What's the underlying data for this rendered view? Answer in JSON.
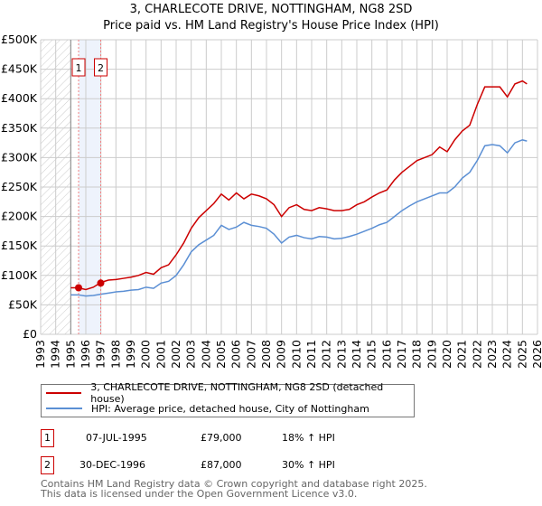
{
  "chart_data": {
    "type": "line",
    "title": "3, CHARLECOTE DRIVE, NOTTINGHAM, NG8 2SD",
    "subtitle": "Price paid vs. HM Land Registry's House Price Index (HPI)",
    "xlim": [
      1993,
      2026
    ],
    "ylim": [
      0,
      500000
    ],
    "x_ticks": [
      "1993",
      "1994",
      "1995",
      "1996",
      "1997",
      "1998",
      "1999",
      "2000",
      "2001",
      "2002",
      "2003",
      "2004",
      "2005",
      "2006",
      "2007",
      "2008",
      "2009",
      "2010",
      "2011",
      "2012",
      "2013",
      "2014",
      "2015",
      "2016",
      "2017",
      "2018",
      "2019",
      "2020",
      "2021",
      "2022",
      "2023",
      "2024",
      "2025",
      "2026"
    ],
    "y_ticks": [
      {
        "v": 0,
        "label": "£0"
      },
      {
        "v": 50000,
        "label": "£50K"
      },
      {
        "v": 100000,
        "label": "£100K"
      },
      {
        "v": 150000,
        "label": "£150K"
      },
      {
        "v": 200000,
        "label": "£200K"
      },
      {
        "v": 250000,
        "label": "£250K"
      },
      {
        "v": 300000,
        "label": "£300K"
      },
      {
        "v": 350000,
        "label": "£350K"
      },
      {
        "v": 400000,
        "label": "£400K"
      },
      {
        "v": 450000,
        "label": "£450K"
      },
      {
        "v": 500000,
        "label": "£500K"
      }
    ],
    "grid": true,
    "hatched_before": 1995,
    "shaded_range": [
      1995.52,
      1997.0
    ],
    "series": [
      {
        "name": "3, CHARLECOTE DRIVE, NOTTINGHAM, NG8 2SD (detached house)",
        "color": "#cc0000",
        "x": [
          1995,
          1995.5,
          1996,
          1996.5,
          1997,
          1997.5,
          1998,
          1998.5,
          1999,
          1999.5,
          2000,
          2000.5,
          2001,
          2001.5,
          2002,
          2002.5,
          2003,
          2003.5,
          2004,
          2004.5,
          2005,
          2005.5,
          2006,
          2006.5,
          2007,
          2007.5,
          2008,
          2008.5,
          2009,
          2009.5,
          2010,
          2010.5,
          2011,
          2011.5,
          2012,
          2012.5,
          2013,
          2013.5,
          2014,
          2014.5,
          2015,
          2015.5,
          2016,
          2016.5,
          2017,
          2017.5,
          2018,
          2018.5,
          2019,
          2019.5,
          2020,
          2020.5,
          2021,
          2021.5,
          2022,
          2022.5,
          2023,
          2023.5,
          2024,
          2024.5,
          2025,
          2025.3
        ],
        "y": [
          79000,
          79000,
          76000,
          80000,
          88000,
          92000,
          93000,
          95000,
          97000,
          100000,
          105000,
          102000,
          113000,
          118000,
          135000,
          155000,
          180000,
          198000,
          210000,
          222000,
          238000,
          228000,
          240000,
          230000,
          238000,
          235000,
          230000,
          220000,
          200000,
          215000,
          220000,
          212000,
          210000,
          215000,
          213000,
          210000,
          210000,
          212000,
          220000,
          225000,
          233000,
          240000,
          245000,
          262000,
          275000,
          285000,
          295000,
          300000,
          305000,
          318000,
          310000,
          330000,
          345000,
          355000,
          390000,
          420000,
          420000,
          420000,
          403000,
          425000,
          430000,
          425000
        ]
      },
      {
        "name": "HPI: Average price, detached house, City of Nottingham",
        "color": "#5b8fd4",
        "x": [
          1995,
          1995.5,
          1996,
          1996.5,
          1997,
          1997.5,
          1998,
          1998.5,
          1999,
          1999.5,
          2000,
          2000.5,
          2001,
          2001.5,
          2002,
          2002.5,
          2003,
          2003.5,
          2004,
          2004.5,
          2005,
          2005.5,
          2006,
          2006.5,
          2007,
          2007.5,
          2008,
          2008.5,
          2009,
          2009.5,
          2010,
          2010.5,
          2011,
          2011.5,
          2012,
          2012.5,
          2013,
          2013.5,
          2014,
          2014.5,
          2015,
          2015.5,
          2016,
          2016.5,
          2017,
          2017.5,
          2018,
          2018.5,
          2019,
          2019.5,
          2020,
          2020.5,
          2021,
          2021.5,
          2022,
          2022.5,
          2023,
          2023.5,
          2024,
          2024.5,
          2025,
          2025.3
        ],
        "y": [
          67000,
          67000,
          65000,
          66000,
          68000,
          70000,
          72000,
          73000,
          75000,
          76000,
          80000,
          78000,
          87000,
          90000,
          100000,
          118000,
          140000,
          152000,
          160000,
          168000,
          185000,
          178000,
          182000,
          190000,
          185000,
          183000,
          180000,
          170000,
          155000,
          165000,
          168000,
          164000,
          162000,
          166000,
          165000,
          162000,
          163000,
          166000,
          170000,
          175000,
          180000,
          186000,
          190000,
          200000,
          210000,
          218000,
          225000,
          230000,
          235000,
          240000,
          240000,
          250000,
          265000,
          275000,
          295000,
          320000,
          322000,
          320000,
          308000,
          325000,
          330000,
          328000
        ]
      }
    ],
    "sales": [
      {
        "id": "1",
        "x": 1995.52,
        "y": 79000
      },
      {
        "id": "2",
        "x": 1996.99,
        "y": 87000
      }
    ]
  },
  "legend": {
    "property": "3, CHARLECOTE DRIVE, NOTTINGHAM, NG8 2SD (detached house)",
    "hpi": "HPI: Average price, detached house, City of Nottingham"
  },
  "transactions": [
    {
      "id": "1",
      "date": "07-JUL-1995",
      "price": "£79,000",
      "hpi": "18% ↑ HPI"
    },
    {
      "id": "2",
      "date": "30-DEC-1996",
      "price": "£87,000",
      "hpi": "30% ↑ HPI"
    }
  ],
  "footer": {
    "line1": "Contains HM Land Registry data © Crown copyright and database right 2025.",
    "line2": "This data is licensed under the Open Government Licence v3.0."
  }
}
